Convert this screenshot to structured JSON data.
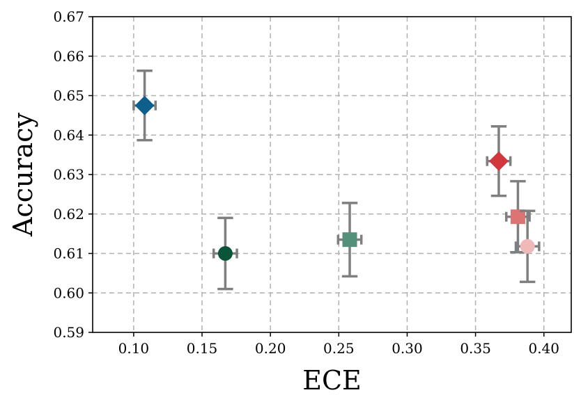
{
  "chart_data": {
    "type": "scatter",
    "title": "",
    "xlabel": "ECE",
    "ylabel": "Accuracy",
    "xlim": [
      0.07,
      0.42
    ],
    "ylim": [
      0.59,
      0.67
    ],
    "xticks": [
      0.1,
      0.15,
      0.2,
      0.25,
      0.3,
      0.35,
      0.4
    ],
    "xtick_labels": [
      "0.10",
      "0.15",
      "0.20",
      "0.25",
      "0.30",
      "0.35",
      "0.40"
    ],
    "yticks": [
      0.59,
      0.6,
      0.61,
      0.62,
      0.63,
      0.64,
      0.65,
      0.66,
      0.67
    ],
    "ytick_labels": [
      "0.59",
      "0.60",
      "0.61",
      "0.62",
      "0.63",
      "0.64",
      "0.65",
      "0.66",
      "0.67"
    ],
    "grid": true,
    "errorbar_color": "#7f7f7f",
    "points": [
      {
        "x": 0.108,
        "y": 0.6475,
        "xerr": 0.008,
        "yerr": 0.0088,
        "marker": "diamond",
        "color": "#0e5f8c"
      },
      {
        "x": 0.167,
        "y": 0.61,
        "xerr": 0.0085,
        "yerr": 0.009,
        "marker": "circle",
        "color": "#0b5339"
      },
      {
        "x": 0.258,
        "y": 0.6135,
        "xerr": 0.0085,
        "yerr": 0.0093,
        "marker": "square",
        "color": "#54917a"
      },
      {
        "x": 0.367,
        "y": 0.6334,
        "xerr": 0.0085,
        "yerr": 0.0088,
        "marker": "diamond",
        "color": "#d1383d"
      },
      {
        "x": 0.381,
        "y": 0.6193,
        "xerr": 0.0085,
        "yerr": 0.009,
        "marker": "square",
        "color": "#dc7474"
      },
      {
        "x": 0.388,
        "y": 0.6118,
        "xerr": 0.0085,
        "yerr": 0.009,
        "marker": "circle",
        "color": "#f0b9b9"
      }
    ]
  }
}
